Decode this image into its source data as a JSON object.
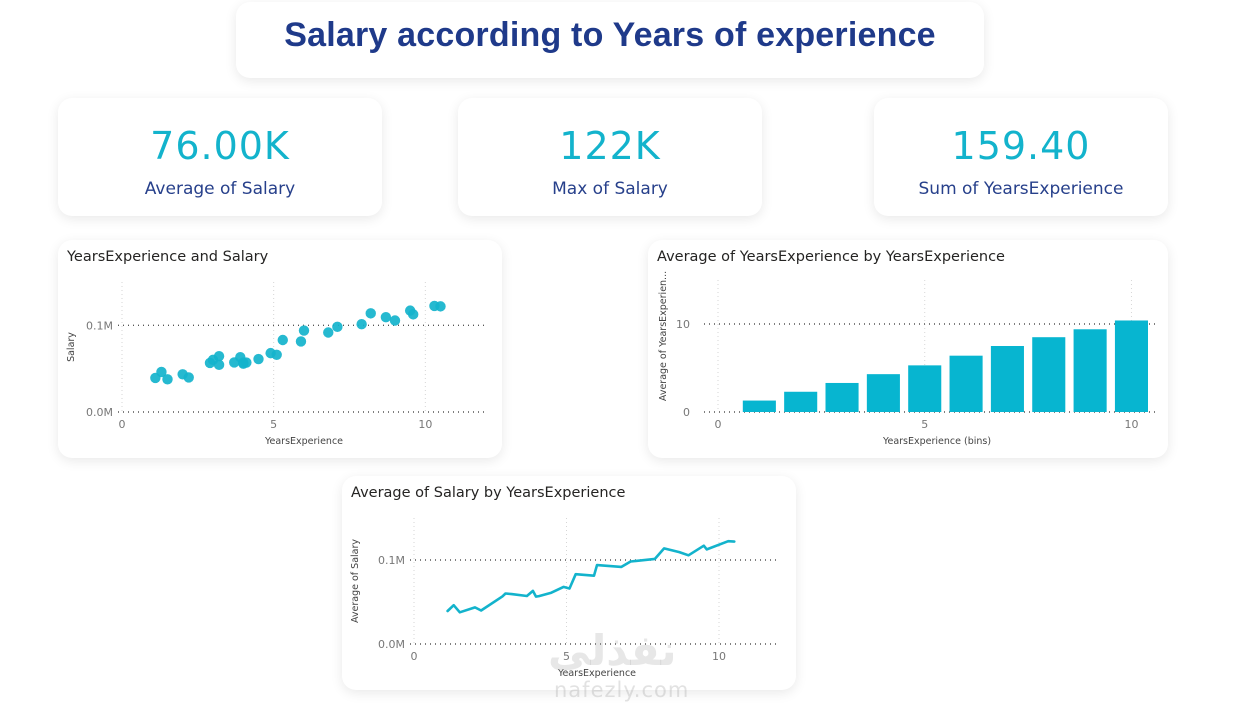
{
  "page": {
    "title": "Salary according to Years of experience",
    "accent_color": "#13b3cc",
    "title_color": "#1f3a8a"
  },
  "kpis": [
    {
      "value": "76.00K",
      "label": "Average of Salary"
    },
    {
      "value": "122K",
      "label": "Max of Salary"
    },
    {
      "value": "159.40",
      "label": "Sum of YearsExperience"
    }
  ],
  "watermark": {
    "arabic": "نفذلي",
    "latin": "nafezly.com"
  },
  "chart_data": [
    {
      "type": "scatter",
      "title": "YearsExperience and Salary",
      "xlabel": "YearsExperience",
      "ylabel": "Salary",
      "xlim": [
        0,
        12
      ],
      "ylim": [
        0,
        150000
      ],
      "xticks": [
        0,
        5,
        10
      ],
      "xtick_labels": [
        "0",
        "5",
        "10"
      ],
      "yticks": [
        0,
        100000
      ],
      "ytick_labels": [
        "0.0M",
        "0.1M"
      ],
      "grid": true,
      "color": "#13b3cc",
      "x": [
        1.1,
        1.3,
        1.5,
        2.0,
        2.2,
        2.9,
        3.0,
        3.2,
        3.2,
        3.7,
        3.9,
        4.0,
        4.0,
        4.1,
        4.5,
        4.9,
        5.1,
        5.3,
        5.9,
        6.0,
        6.8,
        7.1,
        7.9,
        8.2,
        8.7,
        9.0,
        9.5,
        9.6,
        10.3,
        10.5
      ],
      "y": [
        39343,
        46205,
        37731,
        43525,
        39891,
        56642,
        60150,
        54445,
        64445,
        57189,
        63218,
        55794,
        56957,
        57081,
        61111,
        67938,
        66029,
        83088,
        81363,
        93940,
        91738,
        98273,
        101302,
        113812,
        109431,
        105582,
        116969,
        112635,
        122391,
        121872
      ]
    },
    {
      "type": "bar",
      "title": "Average of YearsExperience by YearsExperience",
      "xlabel": "YearsExperience (bins)",
      "ylabel": "Average of YearsExperien...",
      "xlim": [
        0,
        10.5
      ],
      "ylim": [
        0,
        15
      ],
      "xticks": [
        0,
        5,
        10
      ],
      "xtick_labels": [
        "0",
        "5",
        "10"
      ],
      "yticks": [
        0,
        10
      ],
      "ytick_labels": [
        "0",
        "10"
      ],
      "grid": true,
      "color": "#07b5d0",
      "categories": [
        1,
        2,
        3,
        4,
        5,
        6,
        7,
        8,
        9,
        10
      ],
      "values": [
        1.3,
        2.3,
        3.3,
        4.3,
        5.3,
        6.4,
        7.5,
        8.5,
        9.4,
        10.4
      ]
    },
    {
      "type": "line",
      "title": "Average of Salary by YearsExperience",
      "xlabel": "YearsExperience",
      "ylabel": "Average of Salary",
      "xlim": [
        0,
        12
      ],
      "ylim": [
        0,
        150000
      ],
      "xticks": [
        0,
        5,
        10
      ],
      "xtick_labels": [
        "0",
        "5",
        "10"
      ],
      "yticks": [
        0,
        100000
      ],
      "ytick_labels": [
        "0.0M",
        "0.1M"
      ],
      "grid": true,
      "color": "#13b3cc",
      "x": [
        1.1,
        1.3,
        1.5,
        2.0,
        2.2,
        2.9,
        3.0,
        3.2,
        3.7,
        3.9,
        4.0,
        4.1,
        4.5,
        4.9,
        5.1,
        5.3,
        5.9,
        6.0,
        6.8,
        7.1,
        7.9,
        8.2,
        8.7,
        9.0,
        9.5,
        9.6,
        10.3,
        10.5
      ],
      "y": [
        39343,
        46205,
        37731,
        43525,
        39891,
        56642,
        60150,
        59445,
        57189,
        63218,
        56376,
        57081,
        61111,
        67938,
        66029,
        83088,
        81363,
        93940,
        91738,
        98273,
        101302,
        113812,
        109431,
        105582,
        116969,
        112635,
        122391,
        121872
      ]
    }
  ]
}
